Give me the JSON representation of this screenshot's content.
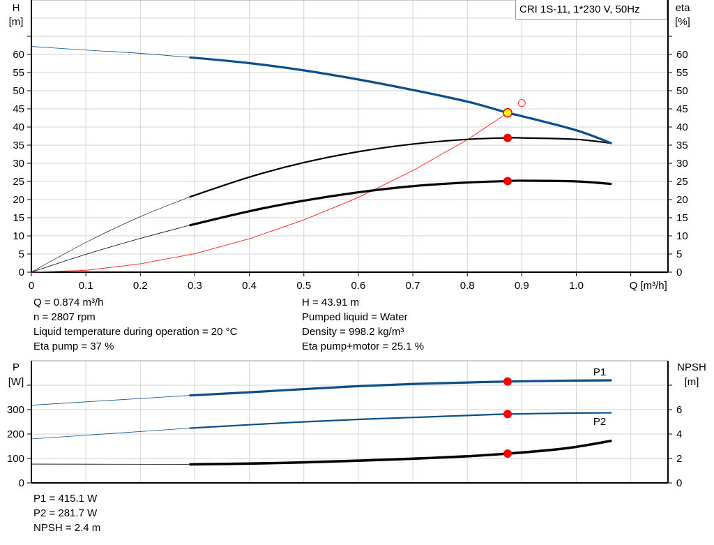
{
  "title_box": "CRI 1S-11, 1*230 V, 50Hz",
  "colors": {
    "blue": "#0b4f8a",
    "black": "#000000",
    "system": "#ff3333",
    "operating_point": "#ff0000",
    "duty_point_fill": "#ffff00",
    "grid": "#d3d3d3"
  },
  "info_top": {
    "left": [
      "Q = 0.874 m³/h",
      "n = 2807 rpm",
      "Liquid temperature during operation = 20 °C",
      "Eta pump = 37 %"
    ],
    "right": [
      "H = 43.91 m",
      "Pumped liquid = Water",
      "Density = 998.2 kg/m³",
      "Eta pump+motor = 25.1 %"
    ]
  },
  "info_bottom": [
    "P1 = 415.1 W",
    "P2 = 281.7 W",
    "NPSH = 2.4 m"
  ],
  "chart_data": [
    {
      "type": "line",
      "xlabel": "Q [m³/h]",
      "ylabel_left": [
        "H",
        "[m]"
      ],
      "ylabel_right": [
        "eta",
        "[%]"
      ],
      "xlim": [
        0,
        1.1
      ],
      "ylim": [
        0,
        70
      ],
      "xticks": [
        "0",
        "0.1",
        "0.2",
        "0.3",
        "0.4",
        "0.5",
        "0.6",
        "0.7",
        "0.8",
        "0.9",
        "1.0"
      ],
      "yticks": [
        "0",
        "5",
        "10",
        "15",
        "20",
        "25",
        "30",
        "35",
        "40",
        "45",
        "50",
        "55",
        "60"
      ],
      "grid": true,
      "series": [
        {
          "key": "H",
          "color": "#0b4f8a",
          "x": [
            0,
            0.1,
            0.2,
            0.29,
            0.4,
            0.5,
            0.6,
            0.7,
            0.8,
            0.874,
            0.9,
            1.0,
            1.065
          ],
          "y": [
            62.2,
            61.2,
            60.3,
            59.2,
            57.6,
            55.6,
            53.1,
            50.2,
            47.0,
            43.91,
            43.0,
            39.1,
            35.5
          ]
        },
        {
          "key": "eta_pump",
          "color": "#000000",
          "x": [
            0,
            0.1,
            0.2,
            0.29,
            0.4,
            0.5,
            0.6,
            0.7,
            0.8,
            0.874,
            0.9,
            1.0,
            1.065
          ],
          "y": [
            0,
            8.2,
            15.3,
            20.7,
            26.2,
            30.2,
            33.2,
            35.3,
            36.6,
            37.0,
            37.0,
            36.6,
            35.5
          ]
        },
        {
          "key": "eta_pump_motor",
          "color": "#000000",
          "x": [
            0,
            0.1,
            0.2,
            0.29,
            0.4,
            0.5,
            0.6,
            0.7,
            0.8,
            0.874,
            0.9,
            1.0,
            1.065
          ],
          "y": [
            0,
            4.9,
            9.3,
            12.9,
            16.8,
            19.7,
            22.0,
            23.7,
            24.7,
            25.1,
            25.2,
            25.0,
            24.3
          ]
        },
        {
          "key": "system_curve",
          "color": "#ff3333",
          "x": [
            0,
            0.1,
            0.2,
            0.3,
            0.4,
            0.5,
            0.6,
            0.7,
            0.8,
            0.874
          ],
          "y": [
            0,
            0.5,
            2.3,
            5.1,
            9.2,
            14.4,
            20.6,
            28.0,
            36.5,
            43.91
          ]
        }
      ],
      "operating_points": [
        {
          "key": "duty_H",
          "x": 0.874,
          "y": 43.91
        },
        {
          "key": "eta_pump",
          "x": 0.874,
          "y": 37.0
        },
        {
          "key": "eta_pump_motor",
          "x": 0.874,
          "y": 25.1
        }
      ],
      "requested_point": {
        "x": 0.9,
        "y": 46.6
      }
    },
    {
      "type": "line",
      "ylabel_left": [
        "P",
        "[W]"
      ],
      "ylabel_right": [
        "NPSH",
        "[m]"
      ],
      "xlim": [
        0,
        1.1
      ],
      "ylim_left": [
        0,
        400
      ],
      "ylim_right": [
        0,
        8
      ],
      "yticks_left": [
        "0",
        "100",
        "200",
        "300"
      ],
      "yticks_right": [
        "0",
        "2",
        "4",
        "6"
      ],
      "grid": true,
      "series": [
        {
          "name": "P1",
          "axis": "left",
          "color": "#0b4f8a",
          "x": [
            0,
            0.29,
            0.4,
            0.5,
            0.6,
            0.7,
            0.8,
            0.874,
            1.0,
            1.065
          ],
          "y": [
            318,
            358,
            371,
            384,
            396,
            405,
            411,
            415.1,
            419,
            420
          ]
        },
        {
          "name": "P2",
          "axis": "left",
          "color": "#0b4f8a",
          "x": [
            0,
            0.29,
            0.4,
            0.5,
            0.6,
            0.7,
            0.8,
            0.874,
            1.0,
            1.065
          ],
          "y": [
            180,
            224,
            238,
            250,
            260,
            268,
            276,
            281.7,
            286,
            287
          ]
        },
        {
          "key": "NPSH",
          "axis": "right",
          "color": "#000000",
          "x": [
            0,
            0.29,
            0.4,
            0.5,
            0.6,
            0.7,
            0.8,
            0.874,
            0.95,
            1.0,
            1.065
          ],
          "y": [
            1.54,
            1.52,
            1.58,
            1.68,
            1.82,
            1.98,
            2.18,
            2.4,
            2.68,
            2.95,
            3.45
          ]
        }
      ],
      "operating_points": [
        {
          "key": "P1",
          "x": 0.874,
          "y": 415.1,
          "axis": "left"
        },
        {
          "key": "P2",
          "x": 0.874,
          "y": 281.7,
          "axis": "left"
        },
        {
          "key": "NPSH",
          "x": 0.874,
          "y": 2.4,
          "axis": "right"
        }
      ]
    }
  ]
}
